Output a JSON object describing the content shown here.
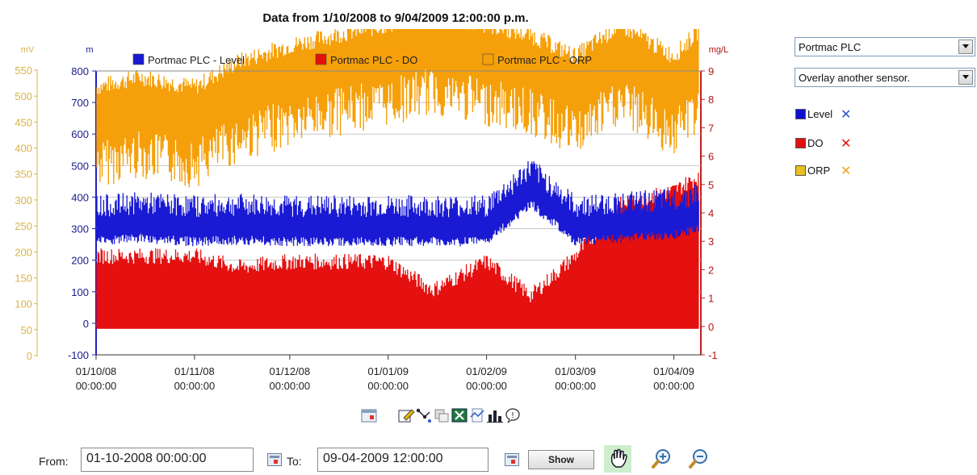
{
  "title": "Data from 1/10/2008 to 9/04/2009 12:00:00 p.m.",
  "axes": {
    "left_outer_unit": "mV",
    "left_inner_unit": "m",
    "right_unit": "mg/L",
    "left_outer_ticks": [
      "550",
      "500",
      "450",
      "400",
      "350",
      "300",
      "250",
      "200",
      "150",
      "100",
      "50",
      "0"
    ],
    "left_inner_ticks": [
      "800",
      "700",
      "600",
      "500",
      "400",
      "300",
      "200",
      "100",
      "0",
      "-100"
    ],
    "right_ticks": [
      "9",
      "8",
      "7",
      "6",
      "5",
      "4",
      "3",
      "2",
      "1",
      "0",
      "-1"
    ],
    "x_ticks": [
      {
        "date": "01/10/08",
        "time": "00:00:00"
      },
      {
        "date": "01/11/08",
        "time": "00:00:00"
      },
      {
        "date": "01/12/08",
        "time": "00:00:00"
      },
      {
        "date": "01/01/09",
        "time": "00:00:00"
      },
      {
        "date": "01/02/09",
        "time": "00:00:00"
      },
      {
        "date": "01/03/09",
        "time": "00:00:00"
      },
      {
        "date": "01/04/09",
        "time": "00:00:00"
      }
    ]
  },
  "legend": [
    {
      "label": "Portmac PLC - Level",
      "color": "#1a1ad4"
    },
    {
      "label": "Portmac PLC - DO",
      "color": "#e51010"
    },
    {
      "label": "Portmac PLC - ORP",
      "color": "#f5a00a"
    }
  ],
  "colors": {
    "level": "#1a1ad4",
    "do": "#e51010",
    "orp": "#f5a00a",
    "orp_axis": "#d9b34a",
    "level_axis": "#1a1a8c",
    "do_axis": "#b01818",
    "grid": "#c8c8c8"
  },
  "chart_data": {
    "type": "area",
    "title": "Data from 1/10/2008 to 9/04/2009 12:00:00 p.m.",
    "x_range": [
      "01/10/08 00:00:00",
      "09/04/09 12:00:00"
    ],
    "x_ticks": [
      "01/10/08 00:00:00",
      "01/11/08 00:00:00",
      "01/12/08 00:00:00",
      "01/01/09 00:00:00",
      "01/02/09 00:00:00",
      "01/03/09 00:00:00",
      "01/04/09 00:00:00"
    ],
    "y_axes": [
      {
        "unit": "m",
        "side": "left",
        "range": [
          -100,
          800
        ]
      },
      {
        "unit": "mV",
        "side": "left-outer",
        "range": [
          0,
          550
        ]
      },
      {
        "unit": "mg/L",
        "side": "right",
        "range": [
          -1,
          9
        ]
      }
    ],
    "series": [
      {
        "name": "Portmac PLC - ORP",
        "unit": "mV",
        "x": [
          "01/10/08",
          "15/10/08",
          "01/11/08",
          "15/11/08",
          "01/12/08",
          "15/12/08",
          "01/01/09",
          "15/01/09",
          "01/02/09",
          "15/02/09",
          "01/03/09",
          "15/03/09",
          "01/04/09",
          "09/04/09"
        ],
        "values": [
          500,
          520,
          500,
          550,
          580,
          600,
          620,
          640,
          620,
          600,
          560,
          620,
          560,
          610
        ]
      },
      {
        "name": "Portmac PLC - Level",
        "unit": "m",
        "x": [
          "01/10/08",
          "15/10/08",
          "01/11/08",
          "15/11/08",
          "01/12/08",
          "15/12/08",
          "01/01/09",
          "15/01/09",
          "01/02/09",
          "15/02/09",
          "01/03/09",
          "15/03/09",
          "01/04/09",
          "09/04/09"
        ],
        "values": [
          300,
          310,
          300,
          305,
          300,
          300,
          300,
          300,
          300,
          420,
          300,
          310,
          320,
          340
        ]
      },
      {
        "name": "Portmac PLC - DO",
        "unit": "mg/L",
        "x": [
          "01/10/08",
          "15/10/08",
          "01/11/08",
          "15/11/08",
          "01/12/08",
          "15/12/08",
          "01/01/09",
          "15/01/09",
          "01/02/09",
          "15/02/09",
          "01/03/09",
          "15/03/09",
          "01/04/09",
          "09/04/09"
        ],
        "values": [
          2.2,
          2.2,
          2.2,
          1.8,
          2.0,
          2.0,
          2.0,
          1.0,
          2.0,
          0.8,
          2.2,
          4.0,
          4.5,
          5.0
        ]
      }
    ],
    "grid": true,
    "legend_position": "top"
  },
  "side": {
    "sensor_select": "Portmac PLC",
    "overlay_select": "Overlay another sensor.",
    "series_items": [
      {
        "label": "Level",
        "color": "#1010d0",
        "x_color": "#2a55c8"
      },
      {
        "label": "DO",
        "color": "#e01010",
        "x_color": "#e01010"
      },
      {
        "label": "ORP",
        "color": "#e8c020",
        "x_color": "#f0a020"
      }
    ]
  },
  "controls": {
    "from_label": "From:",
    "from_value": "01-10-2008 00:00:00",
    "to_label": "To:",
    "to_value": "09-04-2009 12:00:00",
    "show_label": "Show"
  }
}
